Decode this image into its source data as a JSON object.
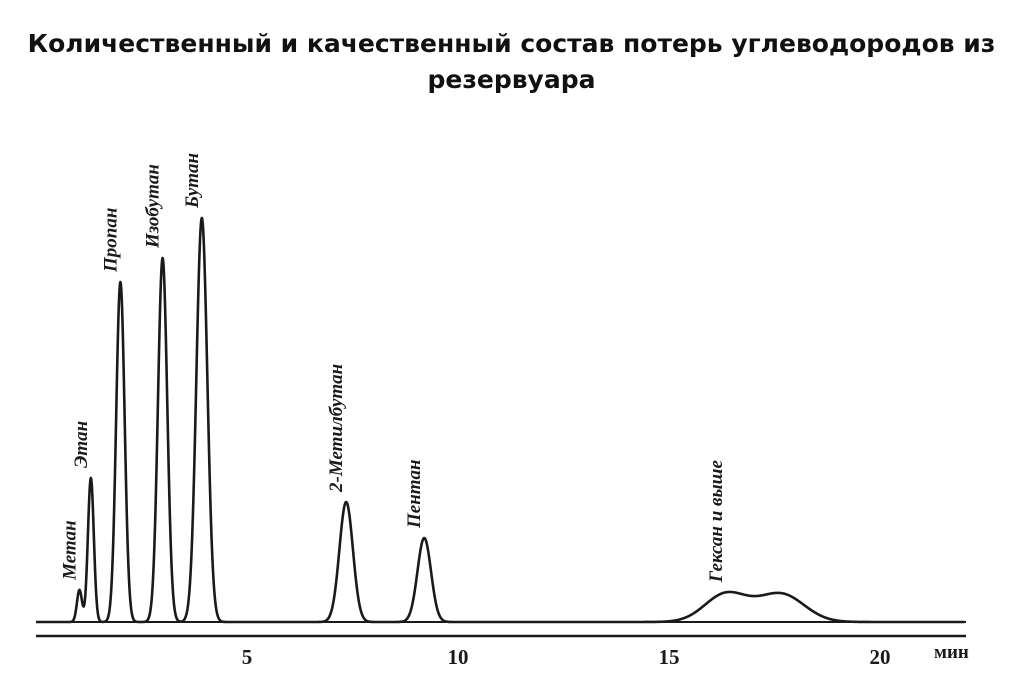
{
  "chart_data": {
    "type": "line",
    "title": "Количественный и качественный состав потерь углеводородов из резервуара",
    "xlabel": "мин",
    "ylabel": "",
    "xlim": [
      0,
      22
    ],
    "ylim": [
      0,
      100
    ],
    "grid": false,
    "x_ticks": [
      {
        "value": 5,
        "label": "5"
      },
      {
        "value": 10,
        "label": "10"
      },
      {
        "value": 15,
        "label": "15"
      },
      {
        "value": 20,
        "label": "20"
      }
    ],
    "peaks": [
      {
        "name": "Метан",
        "x": 1.03,
        "height": 8,
        "sigma": 0.06
      },
      {
        "name": "Этан",
        "x": 1.3,
        "height": 36,
        "sigma": 0.07
      },
      {
        "name": "Пропан",
        "x": 2.0,
        "height": 85,
        "sigma": 0.1
      },
      {
        "name": "Изобутан",
        "x": 3.0,
        "height": 91,
        "sigma": 0.11
      },
      {
        "name": "Бутан",
        "x": 3.93,
        "height": 101,
        "sigma": 0.13
      },
      {
        "name": "2-Метилбутан",
        "x": 7.35,
        "height": 30,
        "sigma": 0.16
      },
      {
        "name": "Пентан",
        "x": 9.2,
        "height": 21,
        "sigma": 0.16
      },
      {
        "name": "Гексан и выше",
        "x": 16.35,
        "height": 7,
        "sigma": 0.5
      },
      {
        "name": "",
        "x": 17.65,
        "height": 7,
        "sigma": 0.55
      }
    ],
    "baseline": 0
  }
}
